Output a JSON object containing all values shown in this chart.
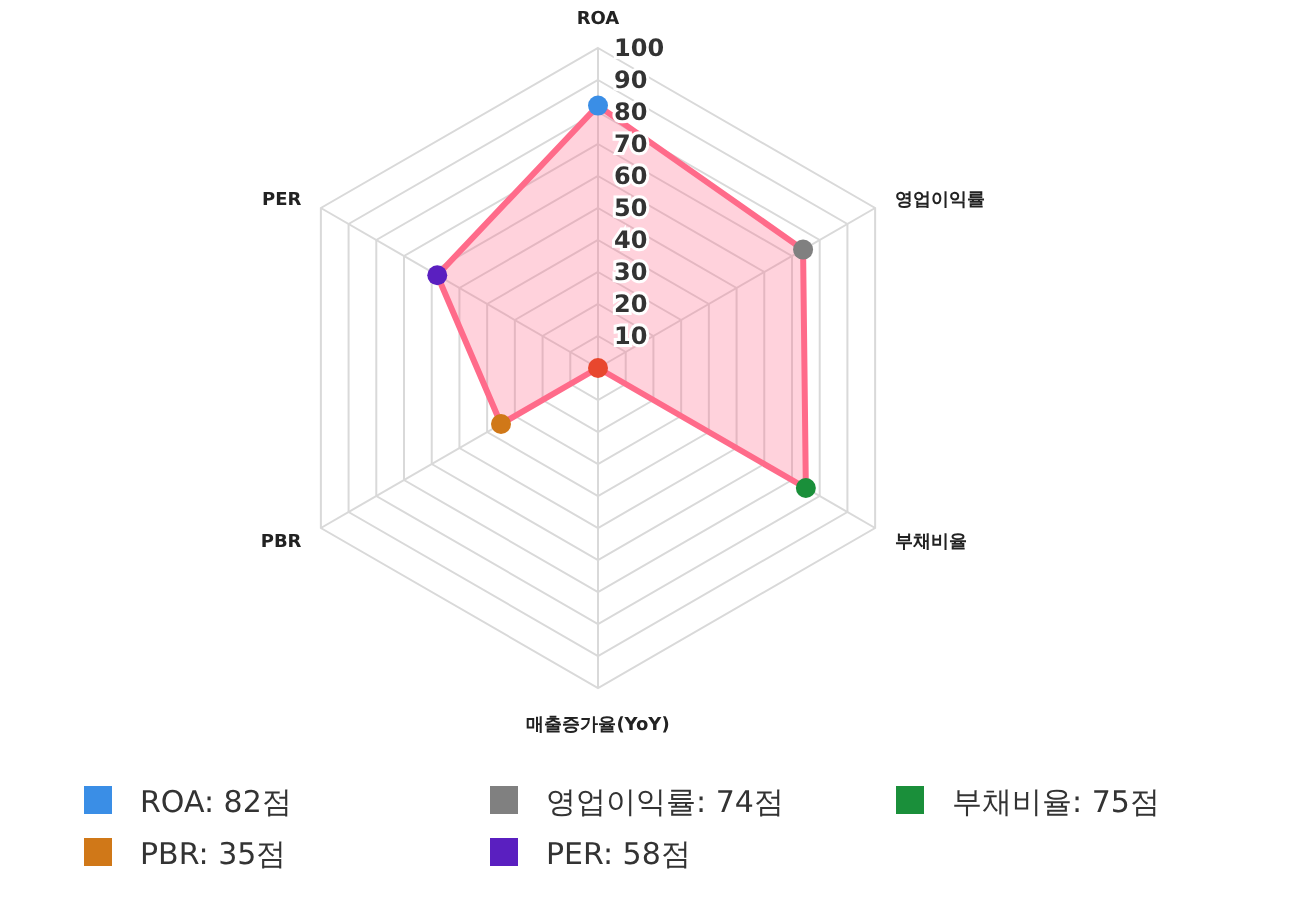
{
  "chart_data": {
    "type": "radar",
    "categories": [
      "ROA",
      "영업이익률",
      "부채비율",
      "매출증가율(YoY)",
      "PBR",
      "PER"
    ],
    "ylim": [
      0,
      100
    ],
    "yticks": [
      10,
      20,
      30,
      40,
      50,
      60,
      70,
      80,
      90,
      100
    ],
    "grid": true,
    "marker": "circle",
    "series": [
      {
        "color": "#ff6b8a",
        "colors": [
          "#3a8ee6",
          "#808080",
          "#1a8f3a",
          "#e8472e",
          "#d07818",
          "#5a1fc0"
        ],
        "values": [
          82,
          74,
          75,
          0,
          35,
          58
        ]
      }
    ],
    "annotations": [
      "ROA: 82점",
      "영업이익률: 74점",
      "부채비율: 75점",
      "PBR: 35점",
      "PER: 58점"
    ]
  }
}
